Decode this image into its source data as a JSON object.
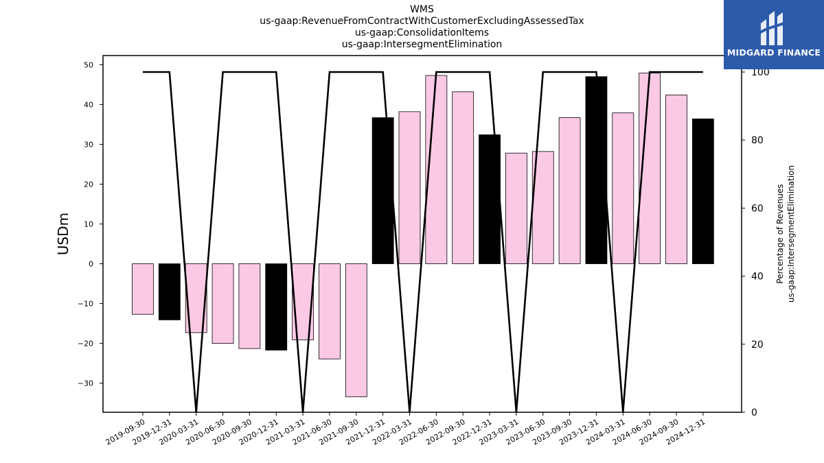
{
  "title_lines": [
    "WMS",
    "us-gaap:RevenueFromContractWithCustomerExcludingAssessedTax",
    "us-gaap:ConsolidationItems",
    "us-gaap:IntersegmentElimination"
  ],
  "logo": {
    "text": "MIDGARD FINANCE",
    "background": "#2c5bab"
  },
  "chart_data": {
    "type": "bar",
    "categories": [
      "2019-09-30",
      "2019-12-31",
      "2020-03-31",
      "2020-06-30",
      "2020-09-30",
      "2020-12-31",
      "2021-03-31",
      "2021-06-30",
      "2021-09-30",
      "2021-12-31",
      "2022-03-31",
      "2022-06-30",
      "2022-09-30",
      "2022-12-31",
      "2023-03-31",
      "2023-06-30",
      "2023-09-30",
      "2023-12-31",
      "2024-03-31",
      "2024-06-30",
      "2024-09-30",
      "2024-12-31"
    ],
    "series": [
      {
        "axis": "left",
        "type": "bar",
        "values": [
          -12.7,
          -14.1,
          -17.3,
          -20.0,
          -21.3,
          -21.7,
          -19.1,
          -23.9,
          -33.4,
          36.7,
          38.2,
          47.3,
          43.2,
          32.4,
          27.8,
          28.2,
          36.7,
          47.0,
          37.9,
          47.9,
          42.4,
          36.4
        ],
        "colors": [
          "#fcc9e5",
          "#000000",
          "#fcc9e5",
          "#fcc9e5",
          "#fcc9e5",
          "#000000",
          "#fcc9e5",
          "#fcc9e5",
          "#fcc9e5",
          "#000000",
          "#fcc9e5",
          "#fcc9e5",
          "#fcc9e5",
          "#000000",
          "#fcc9e5",
          "#fcc9e5",
          "#fcc9e5",
          "#000000",
          "#fcc9e5",
          "#fcc9e5",
          "#fcc9e5",
          "#000000"
        ]
      },
      {
        "axis": "right",
        "type": "line",
        "color": "#000000",
        "values": [
          100,
          100,
          0,
          100,
          100,
          100,
          0,
          100,
          100,
          100,
          0,
          100,
          100,
          100,
          0,
          100,
          100,
          100,
          0,
          100,
          100,
          100
        ]
      }
    ],
    "ylabel": "USDm",
    "y2label_lines": [
      "Percentage of Revenues",
      "us-gaap:IntersegmentElimination"
    ],
    "ylim": [
      -37.3,
      52.3
    ],
    "y2lim": [
      0,
      100
    ],
    "yticks": [
      -30,
      -20,
      -10,
      0,
      10,
      20,
      30,
      40,
      50
    ],
    "y2ticks": [
      0,
      20,
      40,
      60,
      80,
      100
    ],
    "grid": false,
    "legend": "none"
  }
}
